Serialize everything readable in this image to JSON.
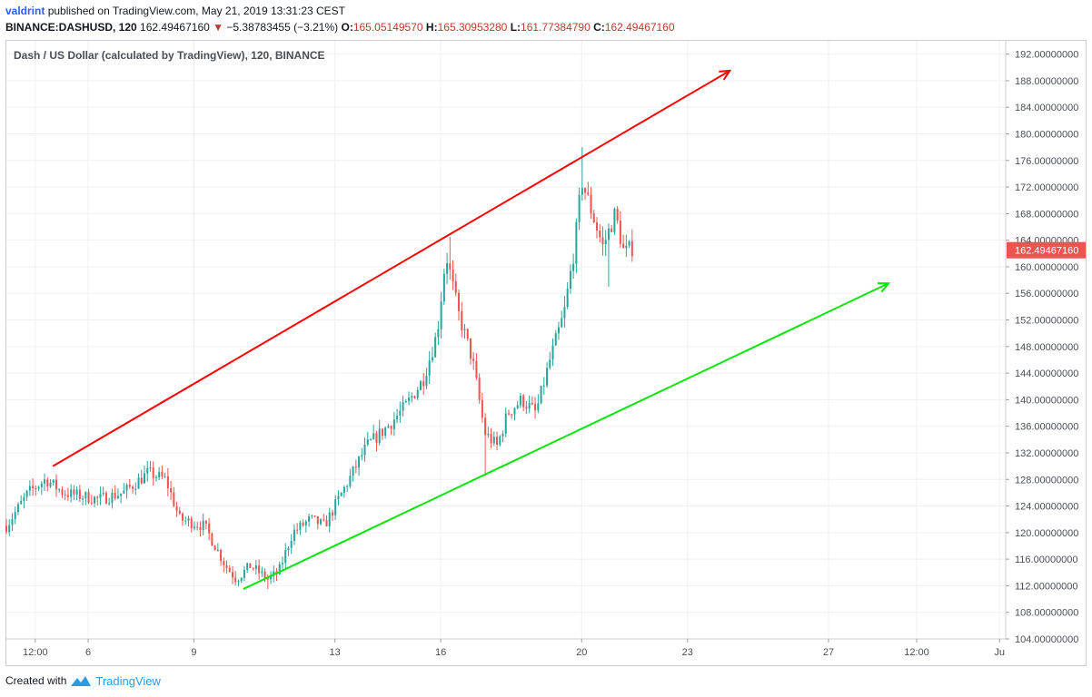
{
  "header": {
    "user": "valdrint",
    "published_text": "published on TradingView.com, May 21, 2019 13:31:23 CEST",
    "symbol": "BINANCE:DASHUSD, 120",
    "last_price": "162.49467160",
    "change_arrow": "▼",
    "change": "−5.38783455 (−3.21%)",
    "o_label": "O:",
    "o_value": "165.05149570",
    "h_label": "H:",
    "h_value": "165.30953280",
    "l_label": "L:",
    "l_value": "161.77384790",
    "c_label": "C:",
    "c_value": "162.49467160"
  },
  "footer": {
    "created_with": "Created with",
    "brand": "TradingView",
    "brand_icon": "tradingview-logo-icon"
  },
  "chart_data": {
    "type": "candlestick",
    "title": "Dash / US Dollar (calculated by TradingView), 120, BINANCE",
    "y_axis": {
      "ticks": [
        "104.00000000",
        "108.00000000",
        "112.00000000",
        "116.00000000",
        "120.00000000",
        "124.00000000",
        "128.00000000",
        "132.00000000",
        "136.00000000",
        "140.00000000",
        "144.00000000",
        "148.00000000",
        "152.00000000",
        "156.00000000",
        "160.00000000",
        "164.00000000",
        "168.00000000",
        "172.00000000",
        "176.00000000",
        "180.00000000",
        "184.00000000",
        "188.00000000",
        "192.00000000"
      ],
      "range": [
        104,
        194
      ],
      "current_price_label": "162.49467160"
    },
    "x_axis": {
      "ticks": [
        {
          "label": "12:00",
          "day": 4.5
        },
        {
          "label": "6",
          "day": 6
        },
        {
          "label": "9",
          "day": 9
        },
        {
          "label": "13",
          "day": 13
        },
        {
          "label": "16",
          "day": 16
        },
        {
          "label": "20",
          "day": 20
        },
        {
          "label": "23",
          "day": 23
        },
        {
          "label": "27",
          "day": 27
        },
        {
          "label": "12:00",
          "day": 29.5
        },
        {
          "label": "Ju",
          "day": 31.85
        }
      ],
      "range": [
        3.68,
        32.0
      ],
      "unit": "day of May 2019"
    },
    "colors": {
      "up": "#26a69a",
      "down": "#ef5350",
      "resistance": "#ff0000",
      "support": "#00e600",
      "price_label_bg": "#ef5350"
    },
    "anchors": [
      {
        "day": 3.68,
        "price": 121
      },
      {
        "day": 4.3,
        "price": 126
      },
      {
        "day": 4.8,
        "price": 128
      },
      {
        "day": 5.3,
        "price": 126
      },
      {
        "day": 6.3,
        "price": 125
      },
      {
        "day": 7.0,
        "price": 126
      },
      {
        "day": 7.7,
        "price": 129
      },
      {
        "day": 8.2,
        "price": 128
      },
      {
        "day": 8.6,
        "price": 122
      },
      {
        "day": 9.3,
        "price": 121
      },
      {
        "day": 9.9,
        "price": 115
      },
      {
        "day": 10.2,
        "price": 113
      },
      {
        "day": 10.6,
        "price": 115
      },
      {
        "day": 11.1,
        "price": 113
      },
      {
        "day": 11.4,
        "price": 114
      },
      {
        "day": 11.8,
        "price": 120
      },
      {
        "day": 12.3,
        "price": 122
      },
      {
        "day": 12.7,
        "price": 121
      },
      {
        "day": 13.3,
        "price": 127
      },
      {
        "day": 13.9,
        "price": 133
      },
      {
        "day": 14.5,
        "price": 136
      },
      {
        "day": 15.0,
        "price": 139
      },
      {
        "day": 15.5,
        "price": 143
      },
      {
        "day": 15.9,
        "price": 150
      },
      {
        "day": 16.15,
        "price": 162
      },
      {
        "day": 16.5,
        "price": 153
      },
      {
        "day": 16.9,
        "price": 146
      },
      {
        "day": 17.25,
        "price": 135
      },
      {
        "day": 17.6,
        "price": 133
      },
      {
        "day": 17.9,
        "price": 138
      },
      {
        "day": 18.3,
        "price": 140
      },
      {
        "day": 18.7,
        "price": 138
      },
      {
        "day": 19.1,
        "price": 146
      },
      {
        "day": 19.5,
        "price": 153
      },
      {
        "day": 19.8,
        "price": 163
      },
      {
        "day": 20.0,
        "price": 173
      },
      {
        "day": 20.3,
        "price": 168
      },
      {
        "day": 20.6,
        "price": 163
      },
      {
        "day": 20.95,
        "price": 168
      },
      {
        "day": 21.2,
        "price": 162
      },
      {
        "day": 21.45,
        "price": 163
      }
    ],
    "spikes": [
      {
        "day": 20.0,
        "high": 178
      },
      {
        "day": 16.3,
        "high": 164.5
      },
      {
        "day": 17.3,
        "low": 128.5
      },
      {
        "day": 11.1,
        "low": 111.5
      },
      {
        "day": 20.8,
        "low": 157
      }
    ],
    "trend_lines": [
      {
        "name": "resistance",
        "from": {
          "day": 5.0,
          "price": 130
        },
        "to": {
          "day": 24.2,
          "price": 189.5
        }
      },
      {
        "name": "support",
        "from": {
          "day": 10.4,
          "price": 111.5
        },
        "to": {
          "day": 28.7,
          "price": 157.5
        }
      }
    ]
  }
}
